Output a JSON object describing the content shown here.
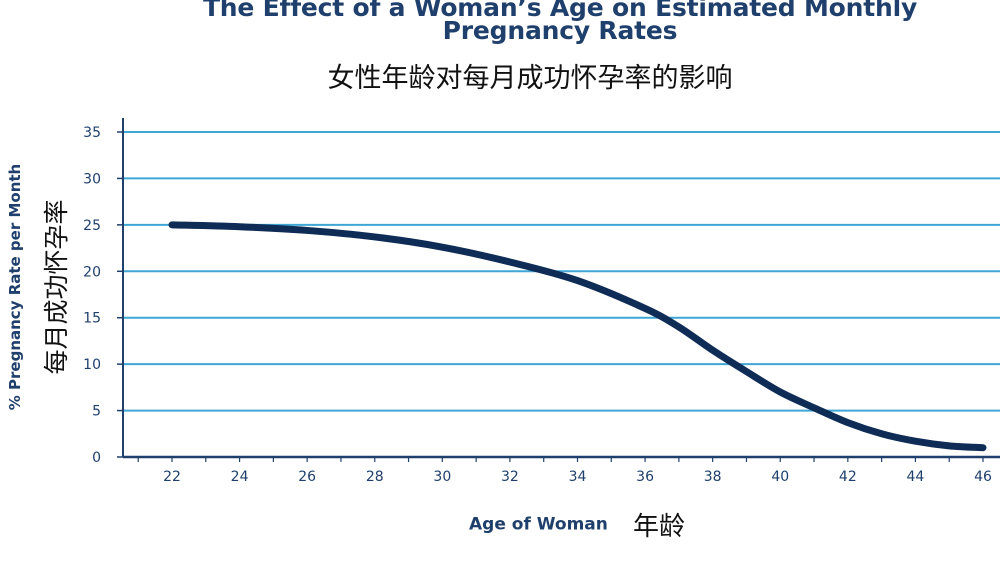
{
  "chart_data": {
    "type": "line",
    "title": "The Effect of a Woman's Age on Estimated Monthly Pregnancy Rates",
    "title_lines": [
      "The Effect of a Woman’s Age on Estimated Monthly",
      "Pregnancy Rates"
    ],
    "subtitle": "女性年龄对每月成功怀孕率的影响",
    "xlabel": "Age of Woman",
    "xlabel_zh": "年龄",
    "ylabel": "% Pregnancy Rate per Month",
    "ylabel_zh": "每月成功怀孕率",
    "xlim": [
      21,
      46.5
    ],
    "ylim": [
      0,
      35
    ],
    "x_ticks": [
      22,
      24,
      26,
      28,
      30,
      32,
      34,
      36,
      38,
      40,
      42,
      44,
      46
    ],
    "y_ticks": [
      0,
      5,
      10,
      15,
      20,
      25,
      30,
      35
    ],
    "grid": "horizontal",
    "colors": {
      "line": "#0f2c56",
      "grid": "#3fa6d6",
      "axis": "#1f3f6c",
      "tick_label": "#1f3f6c"
    },
    "series": [
      {
        "x": [
          22,
          24,
          26,
          28,
          30,
          32,
          34,
          36,
          37,
          38,
          39,
          40,
          41,
          42,
          43,
          44,
          45,
          46
        ],
        "y": [
          25,
          24.8,
          24.4,
          23.7,
          22.6,
          21.0,
          19.0,
          16.0,
          14.0,
          11.5,
          9.2,
          7.0,
          5.3,
          3.7,
          2.5,
          1.7,
          1.2,
          1.0
        ]
      }
    ]
  }
}
